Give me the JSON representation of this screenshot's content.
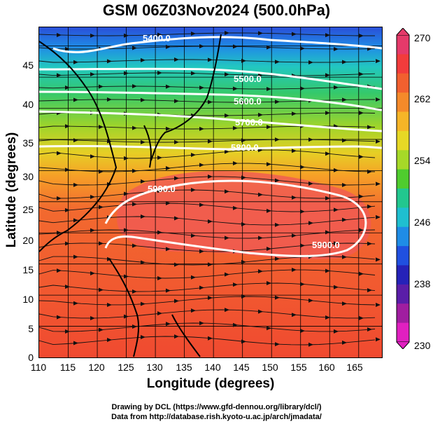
{
  "title": "GSM 06Z03Nov2024 (500.0hPa)",
  "xlabel": "Longitude (degrees)",
  "ylabel": "Latitude  (degrees)",
  "credit_line1": "Drawing by DCL (https://www.gfd-dennou.org/library/dcl/)",
  "credit_line2": "Data from http://database.rish.kyoto-u.ac.jp/arch/jmadata/",
  "x_ticks": [
    "110",
    "115",
    "120",
    "125",
    "130",
    "135",
    "140",
    "145",
    "150",
    "155",
    "160",
    "165"
  ],
  "y_ticks": [
    "0",
    "5",
    "10",
    "15",
    "20",
    "25",
    "30",
    "35",
    "40",
    "45"
  ],
  "colorbar": {
    "ticks": [
      "270",
      "262",
      "254",
      "246",
      "238",
      "230"
    ],
    "colors": [
      "#e53a6a",
      "#f23c3c",
      "#f2602f",
      "#f58a2a",
      "#f6b527",
      "#e6d825",
      "#a6d928",
      "#4fcc2e",
      "#22c78f",
      "#1fbfd0",
      "#1f8ce6",
      "#2050e0",
      "#2522b8",
      "#5a1ea8",
      "#a01ea0",
      "#e020c0"
    ]
  },
  "contour_labels": [
    "5400.0",
    "5500.0",
    "5600.0",
    "5700.0",
    "5800.0",
    "5900.0",
    "5900.0"
  ]
}
